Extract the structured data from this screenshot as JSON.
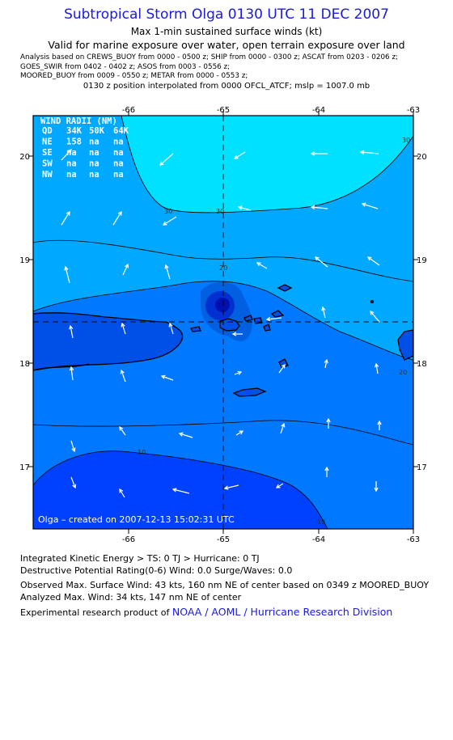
{
  "header": {
    "title": "Subtropical Storm Olga 0130 UTC 11 DEC 2007",
    "subtitle": "Max 1-min sustained surface winds (kt)",
    "valid": "Valid for marine exposure over water, open terrain exposure over land",
    "analysis_lines": [
      "Analysis based on  CREWS_BUOY from 0000 - 0500 z;  SHIP from 0000 - 0300 z;  ASCAT from 0203 - 0206 z;",
      "GOES_SWIR from 0402 - 0402 z;  ASOS from 0003 - 0556 z;",
      "MOORED_BUOY from 0009 - 0550 z;  METAR from 0000 - 0553 z;"
    ],
    "position_note": "0130 z position interpolated from 0000 OFCL_ATCF; mslp = 1007.0 mb"
  },
  "map": {
    "lon_ticks": [
      "-66",
      "-65",
      "-64",
      "-63"
    ],
    "lat_ticks": [
      "20",
      "19",
      "18",
      "17"
    ],
    "lon_range": [
      -66.9,
      -63.0
    ],
    "lat_range": [
      16.4,
      20.5
    ],
    "center": {
      "lon": -65.0,
      "lat": 18.4
    },
    "contour_labels": [
      "30",
      "30",
      "30",
      "20",
      "20",
      "10",
      "10"
    ],
    "wind_radii": {
      "title": "WIND RADII (NM)",
      "header": [
        "QD",
        "34K",
        "50K",
        "64K"
      ],
      "rows": [
        [
          "NE",
          "158",
          "na",
          "na"
        ],
        [
          "SE",
          "na",
          "na",
          "na"
        ],
        [
          "SW",
          "na",
          "na",
          "na"
        ],
        [
          "NW",
          "na",
          "na",
          "na"
        ]
      ]
    },
    "created": "Olga – created on 2007-12-13 15:02:31 UTC",
    "colors": {
      "band_30plus": "#00e0ff",
      "band_20_30": "#00a8ff",
      "band_10_20": "#0078ff",
      "band_lt10": "#0040ff",
      "core_outer": "#0060e0",
      "core_mid": "#0030d0",
      "core_inner": "#0010b0",
      "land": "#0050e8",
      "axis_text": "#000000"
    }
  },
  "footer": {
    "ike": "Integrated Kinetic Energy > TS: 0 TJ   > Hurricane: 0 TJ",
    "dpr": "Destructive Potential Rating(0-6)   Wind: 0.0 Surge/Waves: 0.0",
    "observed": "Observed Max. Surface Wind: 43 kts, 160 nm NE of center based on 0349 z MOORED_BUOY",
    "analyzed": "Analyzed Max. Wind: 34 kts, 147 nm NE of center",
    "credit_prefix": "Experimental research product of",
    "credit_link": "NOAA / AOML / Hurricane Research Division"
  }
}
